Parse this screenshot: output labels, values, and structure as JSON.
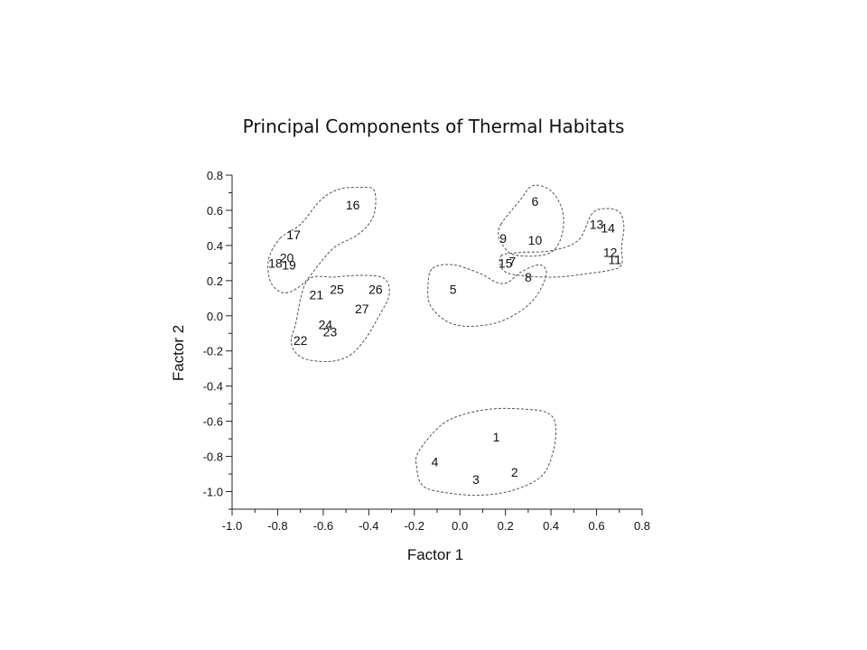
{
  "chart_data": {
    "type": "scatter",
    "title": "Principal Components of Thermal Habitats",
    "xlabel": "Factor 1",
    "ylabel": "Factor 2",
    "xlim": [
      -1.0,
      0.8
    ],
    "ylim": [
      -1.1,
      0.8
    ],
    "xticks": [
      "-1.0",
      "-0.8",
      "-0.6",
      "-0.4",
      "-0.2",
      "0.0",
      "0.2",
      "0.4",
      "0.6",
      "0.8"
    ],
    "yticks": [
      "0.8",
      "0.6",
      "0.4",
      "0.2",
      "0.0",
      "-0.2",
      "-0.4",
      "-0.6",
      "-0.8",
      "-1.0"
    ],
    "points": [
      {
        "label": "1",
        "x": 0.16,
        "y": -0.69
      },
      {
        "label": "2",
        "x": 0.24,
        "y": -0.89
      },
      {
        "label": "3",
        "x": 0.07,
        "y": -0.93
      },
      {
        "label": "4",
        "x": -0.11,
        "y": -0.83
      },
      {
        "label": "5",
        "x": -0.03,
        "y": 0.15
      },
      {
        "label": "6",
        "x": 0.33,
        "y": 0.65
      },
      {
        "label": "7",
        "x": 0.23,
        "y": 0.31
      },
      {
        "label": "8",
        "x": 0.3,
        "y": 0.22
      },
      {
        "label": "9",
        "x": 0.19,
        "y": 0.44
      },
      {
        "label": "10",
        "x": 0.33,
        "y": 0.43
      },
      {
        "label": "11",
        "x": 0.68,
        "y": 0.32
      },
      {
        "label": "12",
        "x": 0.66,
        "y": 0.36
      },
      {
        "label": "13",
        "x": 0.6,
        "y": 0.52
      },
      {
        "label": "14",
        "x": 0.65,
        "y": 0.5
      },
      {
        "label": "15",
        "x": 0.2,
        "y": 0.3
      },
      {
        "label": "16",
        "x": -0.47,
        "y": 0.63
      },
      {
        "label": "17",
        "x": -0.73,
        "y": 0.46
      },
      {
        "label": "18",
        "x": -0.81,
        "y": 0.3
      },
      {
        "label": "19",
        "x": -0.75,
        "y": 0.29
      },
      {
        "label": "20",
        "x": -0.76,
        "y": 0.33
      },
      {
        "label": "21",
        "x": -0.63,
        "y": 0.12
      },
      {
        "label": "22",
        "x": -0.7,
        "y": -0.14
      },
      {
        "label": "23",
        "x": -0.57,
        "y": -0.09
      },
      {
        "label": "24",
        "x": -0.59,
        "y": -0.05
      },
      {
        "label": "25",
        "x": -0.54,
        "y": 0.15
      },
      {
        "label": "26",
        "x": -0.37,
        "y": 0.15
      },
      {
        "label": "27",
        "x": -0.43,
        "y": 0.04
      }
    ],
    "clusters": [
      {
        "outline": [
          [
            -0.79,
            0.44
          ],
          [
            -0.7,
            0.52
          ],
          [
            -0.61,
            0.66
          ],
          [
            -0.53,
            0.72
          ],
          [
            -0.44,
            0.73
          ],
          [
            -0.38,
            0.72
          ],
          [
            -0.37,
            0.63
          ],
          [
            -0.39,
            0.54
          ],
          [
            -0.45,
            0.46
          ],
          [
            -0.55,
            0.39
          ],
          [
            -0.62,
            0.29
          ],
          [
            -0.69,
            0.18
          ],
          [
            -0.77,
            0.13
          ],
          [
            -0.83,
            0.19
          ],
          [
            -0.84,
            0.32
          ]
        ]
      },
      {
        "outline": [
          [
            -0.67,
            0.2
          ],
          [
            -0.55,
            0.22
          ],
          [
            -0.42,
            0.23
          ],
          [
            -0.33,
            0.21
          ],
          [
            -0.31,
            0.12
          ],
          [
            -0.35,
            0.01
          ],
          [
            -0.42,
            -0.14
          ],
          [
            -0.49,
            -0.23
          ],
          [
            -0.58,
            -0.26
          ],
          [
            -0.69,
            -0.24
          ],
          [
            -0.74,
            -0.16
          ],
          [
            -0.72,
            -0.04
          ]
        ]
      },
      {
        "outline": [
          [
            -0.12,
            0.27
          ],
          [
            -0.03,
            0.29
          ],
          [
            0.09,
            0.24
          ],
          [
            0.16,
            0.19
          ],
          [
            0.21,
            0.19
          ],
          [
            0.27,
            0.25
          ],
          [
            0.35,
            0.29
          ],
          [
            0.38,
            0.24
          ],
          [
            0.34,
            0.12
          ],
          [
            0.27,
            0.03
          ],
          [
            0.16,
            -0.04
          ],
          [
            0.03,
            -0.06
          ],
          [
            -0.06,
            -0.03
          ],
          [
            -0.13,
            0.06
          ],
          [
            -0.14,
            0.17
          ]
        ]
      },
      {
        "outline": [
          [
            0.18,
            0.52
          ],
          [
            0.26,
            0.65
          ],
          [
            0.32,
            0.74
          ],
          [
            0.4,
            0.71
          ],
          [
            0.45,
            0.6
          ],
          [
            0.45,
            0.47
          ],
          [
            0.41,
            0.37
          ],
          [
            0.33,
            0.34
          ],
          [
            0.23,
            0.35
          ],
          [
            0.19,
            0.4
          ],
          [
            0.17,
            0.45
          ]
        ]
      },
      {
        "outline": [
          [
            0.18,
            0.34
          ],
          [
            0.26,
            0.36
          ],
          [
            0.4,
            0.37
          ],
          [
            0.52,
            0.43
          ],
          [
            0.58,
            0.58
          ],
          [
            0.64,
            0.61
          ],
          [
            0.7,
            0.59
          ],
          [
            0.72,
            0.51
          ],
          [
            0.71,
            0.39
          ],
          [
            0.71,
            0.29
          ],
          [
            0.66,
            0.26
          ],
          [
            0.56,
            0.24
          ],
          [
            0.42,
            0.22
          ],
          [
            0.26,
            0.23
          ],
          [
            0.19,
            0.26
          ]
        ]
      },
      {
        "outline": [
          [
            -0.18,
            -0.77
          ],
          [
            -0.08,
            -0.62
          ],
          [
            0.02,
            -0.56
          ],
          [
            0.14,
            -0.53
          ],
          [
            0.27,
            -0.53
          ],
          [
            0.38,
            -0.55
          ],
          [
            0.42,
            -0.62
          ],
          [
            0.41,
            -0.77
          ],
          [
            0.36,
            -0.91
          ],
          [
            0.24,
            -0.99
          ],
          [
            0.1,
            -1.02
          ],
          [
            -0.04,
            -1.01
          ],
          [
            -0.16,
            -0.97
          ],
          [
            -0.19,
            -0.86
          ]
        ]
      }
    ],
    "colors": {
      "text": "#111111",
      "axis": "#222222",
      "cluster_outline": "#555555"
    }
  }
}
